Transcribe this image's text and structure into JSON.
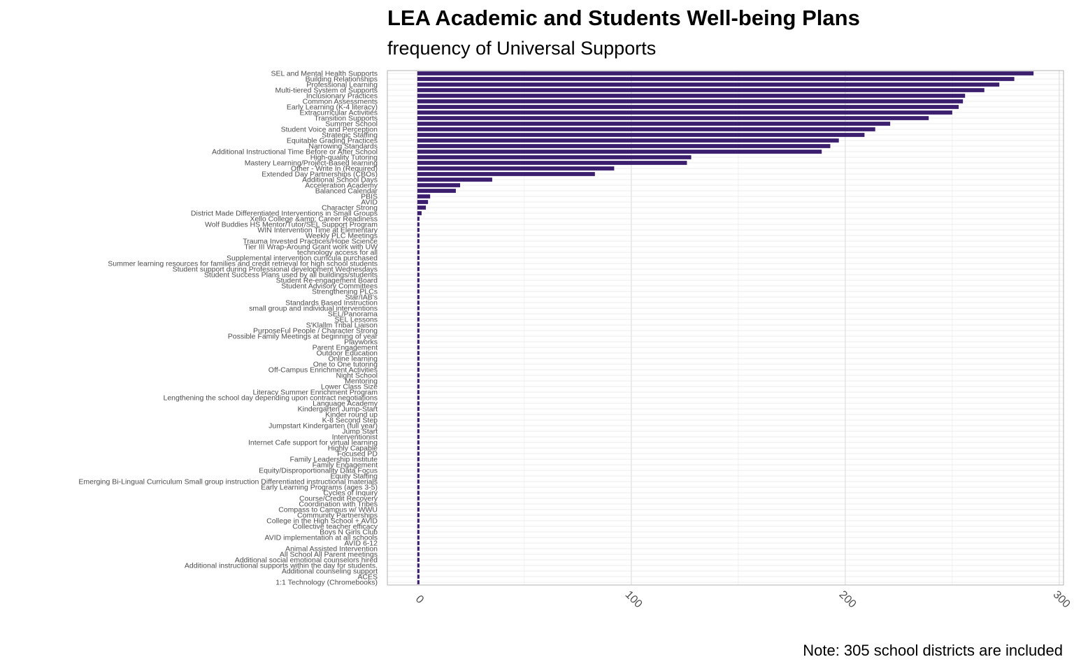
{
  "chart_data": {
    "type": "bar",
    "orientation": "horizontal",
    "title": "LEA Academic and Students Well-being Plans",
    "subtitle": "frequency of Universal Supports",
    "caption": "Note: 305 school districts are included",
    "xlim": [
      -14,
      302
    ],
    "x_ticks": [
      0,
      100,
      200,
      300
    ],
    "grid": true,
    "bar_color": "#3b1f6e",
    "categories": [
      "SEL and Mental Health Supports",
      "Building Relationships",
      "Professional Learning",
      "Multi-tiered System of Supports",
      "Inclusionary Practices",
      "Common Assessments",
      "Early Learning (K-4 literacy)",
      "Extracurricular Activities",
      "Transition Supports",
      "Summer School",
      "Student Voice and Perception",
      "Strategic Staffing",
      "Equitable Grading Practices",
      "Narrowing Standards",
      "Additional Instructional Time Before or After School",
      "High-quality Tutoring",
      "Mastery Learning/Project-Based learning",
      "Other - Write In (Required)",
      "Extended Day Partnerships (CBOs)",
      "Additional School Days",
      "Acceleration Academy",
      "Balanced Calendar",
      "PBIS",
      "AVID",
      "Character Strong",
      "District Made Differentiated Interventions in Small Groups",
      "Xello College &amp; Career Readiness",
      "Wolf Buddies HS Mentor/Tutor/SEL Support Program",
      "WIN Intervention Time at Elementary",
      "Weekly PLC Meetings",
      "Trauma Invested Practices/Hope Science",
      "Tier III Wrap-Around Grant work with UW",
      "technology access for all",
      "Supplemental intervention curricula purchased",
      "Summer learning resources for families and credit retrieval for high school students",
      "Student support during Professional development Wednesdays",
      "Student Success Plans used by all buildings/students",
      "Student Re-engagement Board",
      "Student Advisory Committees",
      "Strengthening PLCs",
      "Star/IAB's",
      "Standards Based Instruction",
      "small group and individual interventions",
      "SEL/Panorama",
      "SEL Lessons",
      "S'Klallm Tribal Liaison",
      "PurposeFul People / Character Strong",
      "Possible Family Meetings at beginning of year",
      "Playworks",
      "Parent Engagement",
      "Outdoor Education",
      "Online learning",
      "One to One tutoring",
      "Off-Campus Enrichment Activities",
      "Night School",
      "Mentoring",
      "Lower Class Size",
      "Literacy Summer Enrichment Program",
      "Lengthening the school day depending upon contract negotiations",
      "Language Academy",
      "Kindergarten Jump-Start",
      "Kinder round up",
      "K-8 Second Step",
      "Jumpstart Kindergarten (full year)",
      "Jump Start",
      "Interventionist",
      "Internet Cafe support for virtual learning",
      "Highly Capable",
      "Focused PD",
      "Family Leadership Institute",
      "Family Engagement",
      "Equity/Disproportionality Data Focus",
      "Equity Staffing",
      "Emerging Bi-Lingual Curriculum Small group instruction Differentiated instructional materials",
      "Early Learning Programs (ages 3-5)",
      "Cycles of Inquiry",
      "Course/Credit Recovery",
      "Coordination with Tribes",
      "Compass to Campus w/ WWU",
      "Community Partnerships",
      "College in the High School + AVID",
      "Collective teacher efficacy",
      "Boys N Girls Club",
      "AVID implementation at all schools",
      "AVID 6-12",
      "Animal Assisted Intervention",
      "All School All Parent meetings",
      "Additional social emotional counselors hired",
      "Additional instructional supports within the day for students.",
      "Additional counseling support",
      "ACES",
      "1:1 Technology (Chromebooks)"
    ],
    "values": [
      288,
      279,
      272,
      265,
      256,
      255,
      253,
      250,
      239,
      221,
      214,
      209,
      197,
      193,
      189,
      128,
      126,
      92,
      83,
      35,
      20,
      18,
      6,
      5,
      4,
      2,
      1,
      1,
      1,
      1,
      1,
      1,
      1,
      1,
      1,
      1,
      1,
      1,
      1,
      1,
      1,
      1,
      1,
      1,
      1,
      1,
      1,
      1,
      1,
      1,
      1,
      1,
      1,
      1,
      1,
      1,
      1,
      1,
      1,
      1,
      1,
      1,
      1,
      1,
      1,
      1,
      1,
      1,
      1,
      1,
      1,
      1,
      1,
      1,
      1,
      1,
      1,
      1,
      1,
      1,
      1,
      1,
      1,
      1,
      1,
      1,
      1,
      1,
      1,
      1,
      1,
      1
    ]
  }
}
